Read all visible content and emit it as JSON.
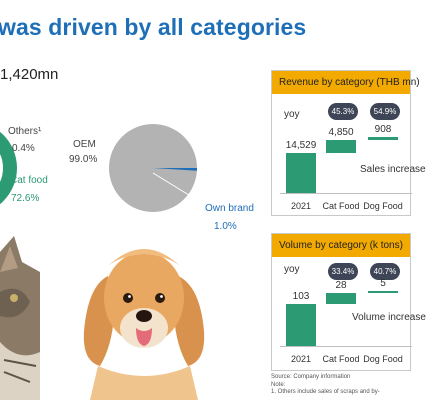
{
  "page": {
    "title": "was driven by all categories",
    "total": "1,420mn"
  },
  "pies": {
    "left": {
      "others_label": "Others¹",
      "others_value": "0.4%",
      "catfood_label": "Cat food",
      "catfood_value": "72.6%",
      "colors": {
        "catfood": "#2c9a72"
      }
    },
    "right": {
      "oem_label": "OEM",
      "oem_value": "99.0%",
      "ownbrand_label": "Own brand",
      "ownbrand_value": "1.0%",
      "colors": {
        "oem": "#b3b3b3",
        "ownbrand": "#1f6fb8"
      }
    }
  },
  "panels": {
    "revenue": {
      "title": "Revenue by category (THB mn)",
      "yoy_label": "yoy",
      "note": "Sales increase"
    },
    "volume": {
      "title": "Volume by category (k tons)",
      "yoy_label": "yoy",
      "note": "Volume increase"
    }
  },
  "footnotes": {
    "source": "Source: Company information",
    "note_label": "Note:",
    "note_1": "1.    Others include sales of scraps and by-"
  },
  "chart_data": [
    {
      "type": "bar",
      "title": "Revenue by category (THB mn)",
      "categories": [
        "2021",
        "Cat Food",
        "Dog Food"
      ],
      "values": [
        14529,
        4850,
        908
      ],
      "value_labels": [
        "14,529",
        "4,850",
        "908"
      ],
      "yoy": [
        "",
        "45.3%",
        "54.9%"
      ],
      "color": "#2c9a72"
    },
    {
      "type": "bar",
      "title": "Volume by category (k tons)",
      "categories": [
        "2021",
        "Cat Food",
        "Dog Food"
      ],
      "values": [
        103,
        28,
        5
      ],
      "value_labels": [
        "103",
        "28",
        "5"
      ],
      "yoy": [
        "",
        "33.4%",
        "40.7%"
      ],
      "color": "#2c9a72"
    },
    {
      "type": "pie",
      "categories": [
        "Cat food",
        "Others¹"
      ],
      "values": [
        72.6,
        0.4
      ],
      "colors": [
        "#2c9a72",
        "#9fa7b5"
      ]
    },
    {
      "type": "pie",
      "categories": [
        "OEM",
        "Own brand"
      ],
      "values": [
        99.0,
        1.0
      ],
      "colors": [
        "#b3b3b3",
        "#1f6fb8"
      ]
    }
  ]
}
